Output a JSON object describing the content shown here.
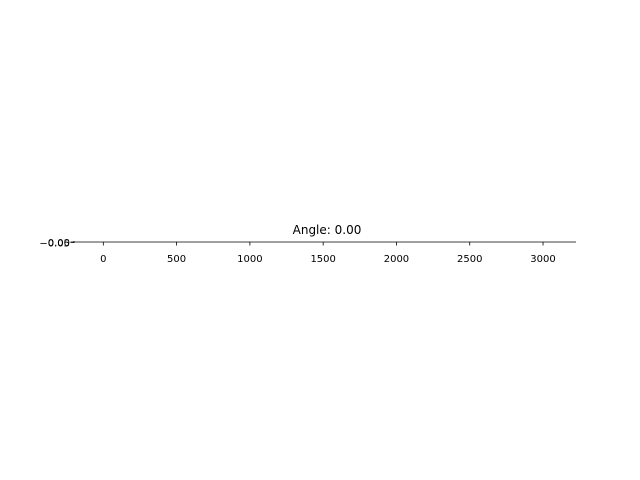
{
  "chart_data": {
    "type": "line",
    "title": "Angle: 0.00",
    "xlabel": "",
    "ylabel": "",
    "xlim": [
      -200,
      3225
    ],
    "ylim": [
      -0.055,
      0.055
    ],
    "x_ticks": [
      0,
      500,
      1000,
      1500,
      2000,
      2500,
      3000
    ],
    "x_tick_labels": [
      "0",
      "500",
      "1000",
      "1500",
      "2000",
      "2500",
      "3000"
    ],
    "y_ticks": [
      -0.05,
      0.0
    ],
    "y_tick_labels": [
      "−0.05",
      "0.00"
    ],
    "grid": false,
    "series": []
  }
}
